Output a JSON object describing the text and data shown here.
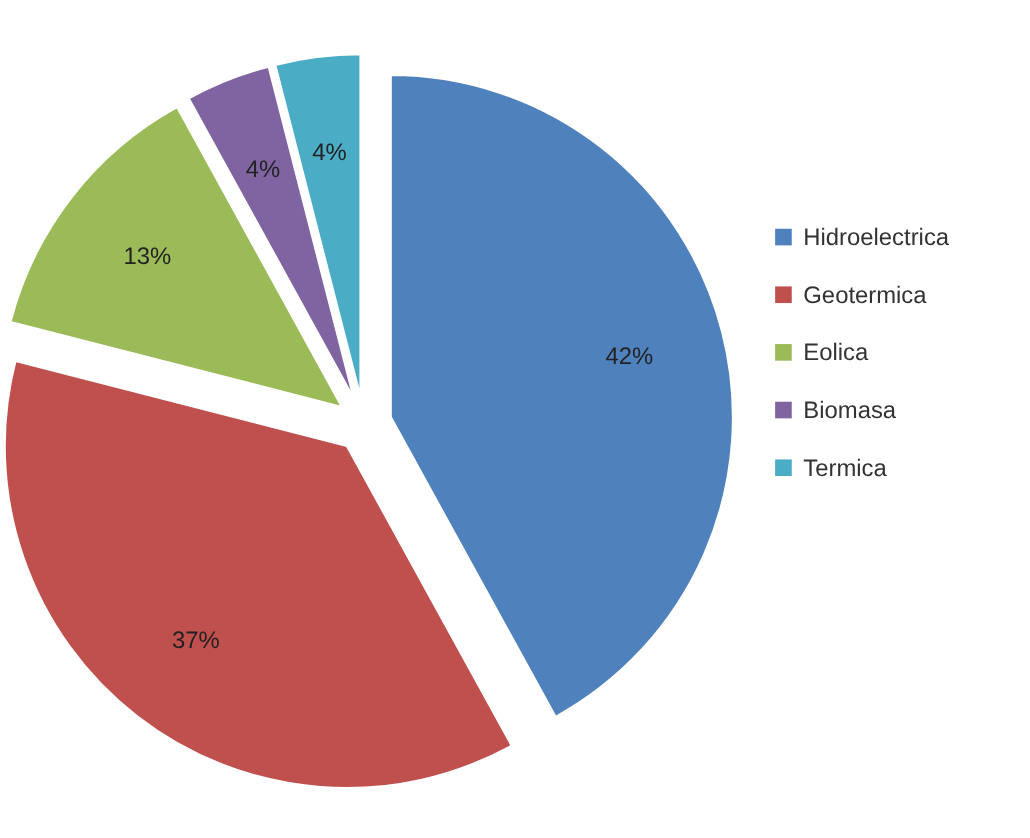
{
  "chart_data": {
    "type": "pie",
    "categories": [
      "Hidroelectrica",
      "Geotermica",
      "Eolica",
      "Biomasa",
      "Termica"
    ],
    "values": [
      42,
      37,
      13,
      4,
      4
    ],
    "colors": [
      "#4f81bd",
      "#c0504d",
      "#9bbb59",
      "#8064a2",
      "#4bacc6"
    ],
    "value_labels": [
      "42%",
      "37%",
      "13%",
      "4%",
      "4%"
    ],
    "legend": "right"
  }
}
